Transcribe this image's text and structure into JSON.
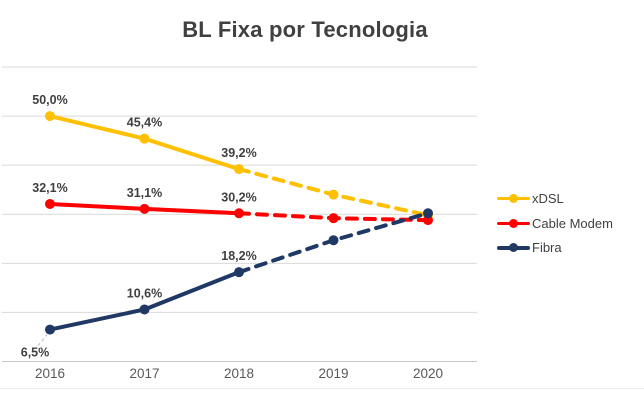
{
  "title": "BL Fixa por Tecnologia",
  "x_axis": {
    "labels": [
      "2016",
      "2017",
      "2018",
      "2019",
      "2020"
    ]
  },
  "legend": {
    "items": [
      {
        "label": "xDSL",
        "color": "#FFC000"
      },
      {
        "label": "Cable Modem",
        "color": "#FF0000"
      },
      {
        "label": "Fibra",
        "color": "#1F3864"
      }
    ]
  },
  "colors": {
    "background": "#FFFFFF",
    "title": "#404040",
    "grid": "#D9D9D9",
    "axis": "#C9C9C9",
    "tick_label": "#595959",
    "data_label": "#404040",
    "leader": "#BFBFBF"
  },
  "chart_data": {
    "type": "line",
    "title": "BL Fixa por Tecnologia",
    "categories": [
      "2016",
      "2017",
      "2018",
      "2019",
      "2020"
    ],
    "unit": "percent",
    "ylim": [
      0,
      60
    ],
    "gridline_values": [
      0,
      10,
      20,
      30,
      40,
      50,
      60
    ],
    "grid": true,
    "legend_position": "right",
    "series": [
      {
        "name": "xDSL",
        "color": "#FFC000",
        "values": [
          50.0,
          45.4,
          39.2,
          34.0,
          29.8
        ],
        "data_labels": [
          "50,0%",
          "45,4%",
          "39,2%",
          "",
          ""
        ],
        "dashed_from_index": 2,
        "label_positions": [
          "above",
          "above",
          "above",
          "",
          ""
        ]
      },
      {
        "name": "Cable Modem",
        "color": "#FF0000",
        "values": [
          32.1,
          31.1,
          30.2,
          29.2,
          28.8
        ],
        "data_labels": [
          "32,1%",
          "31,1%",
          "30,2%",
          "",
          ""
        ],
        "dashed_from_index": 2,
        "label_positions": [
          "above",
          "above",
          "above",
          "",
          ""
        ]
      },
      {
        "name": "Fibra",
        "color": "#1F3864",
        "values": [
          6.5,
          10.6,
          18.2,
          24.7,
          30.2
        ],
        "data_labels": [
          "6,5%",
          "10,6%",
          "18,2%",
          "",
          ""
        ],
        "dashed_from_index": 2,
        "label_positions": [
          "below-left",
          "above",
          "above",
          "",
          ""
        ]
      }
    ]
  }
}
